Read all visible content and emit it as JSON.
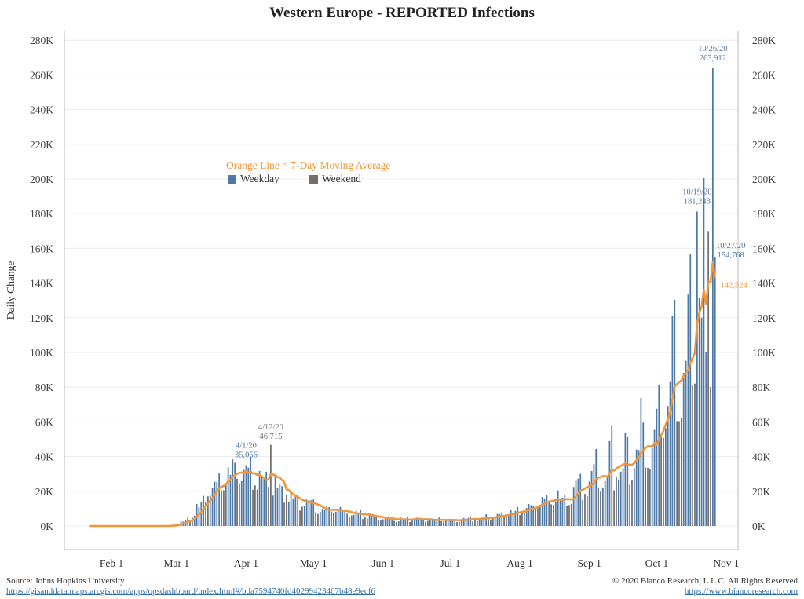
{
  "chart_data": {
    "type": "bar",
    "title": "Western Europe - REPORTED Infections",
    "ylabel": "Daily Change",
    "xlabel": "",
    "ylim": [
      0,
      290000
    ],
    "y_ticks": [
      "0K",
      "20K",
      "40K",
      "60K",
      "80K",
      "100K",
      "120K",
      "140K",
      "160K",
      "180K",
      "200K",
      "220K",
      "240K",
      "260K",
      "280K"
    ],
    "x_ticks": [
      "Feb 1",
      "Mar 1",
      "Apr 1",
      "May 1",
      "Jun 1",
      "Jul 1",
      "Aug 1",
      "Sep 1",
      "Oct 1",
      "Nov 1"
    ],
    "start_date": "2020-01-22",
    "series": [
      {
        "name": "Weekday",
        "color": "#4e79a7"
      },
      {
        "name": "Weekend",
        "color": "#76706c"
      },
      {
        "name": "Orange Line = 7-Day Moving Average",
        "color": "#f0963a"
      }
    ],
    "annotations": [
      {
        "date": "4/1/20",
        "value": "35,056",
        "color": "#4e79a7"
      },
      {
        "date": "4/12/20",
        "value": "46,715",
        "color": "#76706c"
      },
      {
        "date": "10/19/20",
        "value": "181,243",
        "color": "#4e79a7"
      },
      {
        "date": "10/26/20",
        "value": "263,912",
        "color": "#4e79a7"
      },
      {
        "date": "10/27/20",
        "value": "154,768",
        "color": "#4e79a7"
      },
      {
        "date": "",
        "value": "142,824",
        "color": "#f0963a"
      }
    ],
    "grid": true,
    "legend_placement": "upper-left"
  },
  "footer": {
    "source": "Source: Johns Hopkins University",
    "source_link": "https://gisanddata.maps.arcgis.com/apps/opsdashboard/index.html#/bda7594740fd40299423467b48e9ecf6",
    "copyright": "© 2020 Bianco Research, L.L.C. All Rights Reserved",
    "site_link": "https://www.biancoresearch.com"
  }
}
